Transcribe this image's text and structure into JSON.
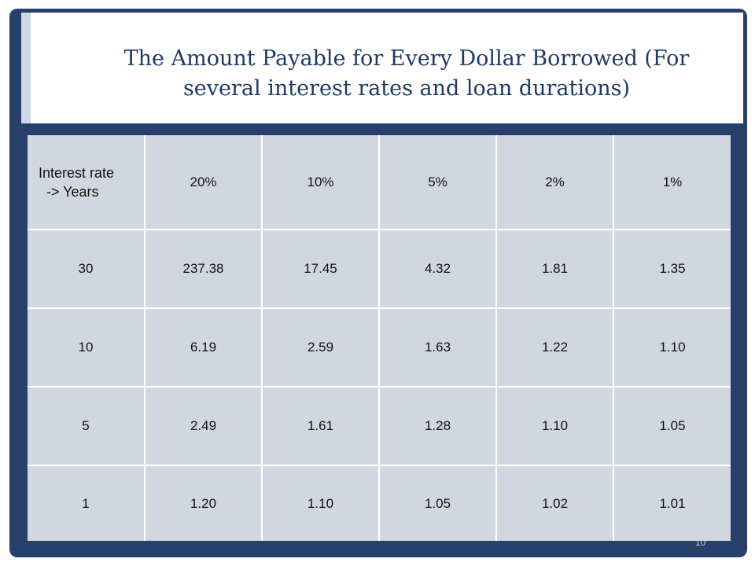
{
  "slide": {
    "title": "The Amount Payable for Every Dollar Borrowed  (For several interest rates and loan durations)",
    "page_number": "10"
  },
  "table": {
    "corner_line1": "Interest rate",
    "corner_line2": "-> Years",
    "columns": [
      "20%",
      "10%",
      "5%",
      "2%",
      "1%"
    ],
    "rows": [
      {
        "years": "30",
        "values": [
          "237.38",
          "17.45",
          "4.32",
          "1.81",
          "1.35"
        ]
      },
      {
        "years": "10",
        "values": [
          "6.19",
          "2.59",
          "1.63",
          "1.22",
          "1.10"
        ]
      },
      {
        "years": "5",
        "values": [
          "2.49",
          "1.61",
          "1.28",
          "1.10",
          "1.05"
        ]
      },
      {
        "years": "1",
        "values": [
          "1.20",
          "1.10",
          "1.05",
          "1.02",
          "1.01"
        ]
      }
    ]
  }
}
